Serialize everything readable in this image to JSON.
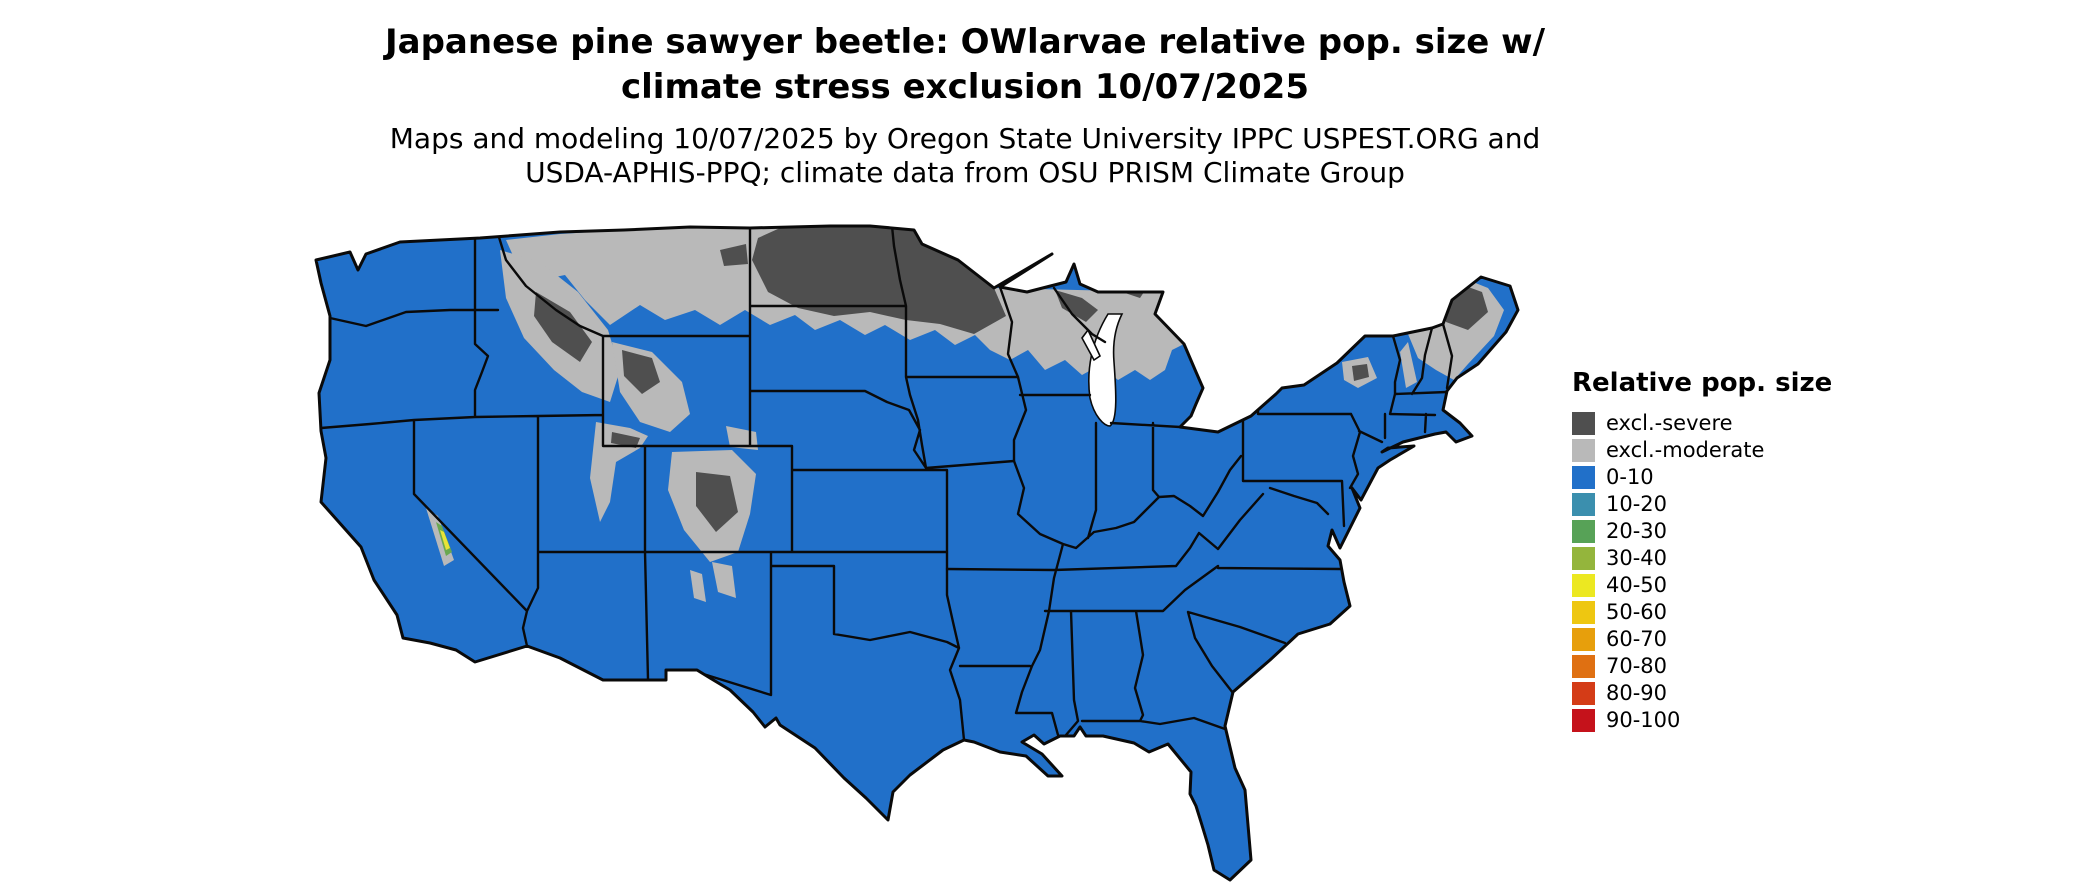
{
  "header": {
    "title_line1": "Japanese pine sawyer beetle: OWlarvae relative pop. size w/",
    "title_line2": "climate stress exclusion 10/07/2025",
    "subtitle_line1": "Maps and modeling 10/07/2025 by Oregon State University IPPC USPEST.ORG and",
    "subtitle_line2": "USDA-APHIS-PPQ; climate data from OSU PRISM Climate Group"
  },
  "legend": {
    "title": "Relative pop. size",
    "items": [
      {
        "label": "excl.-severe",
        "color": "#4f4f4f"
      },
      {
        "label": "excl.-moderate",
        "color": "#b9b9b9"
      },
      {
        "label": "0-10",
        "color": "#2170c9"
      },
      {
        "label": "10-20",
        "color": "#3b8fae"
      },
      {
        "label": "20-30",
        "color": "#57a257"
      },
      {
        "label": "30-40",
        "color": "#94b53c"
      },
      {
        "label": "40-50",
        "color": "#ece821"
      },
      {
        "label": "50-60",
        "color": "#eec711"
      },
      {
        "label": "60-70",
        "color": "#e79f0c"
      },
      {
        "label": "70-80",
        "color": "#df7012"
      },
      {
        "label": "80-90",
        "color": "#d43c17"
      },
      {
        "label": "90-100",
        "color": "#c5121b"
      }
    ]
  },
  "map": {
    "colors": {
      "land_base": "#2170c9",
      "excl_moderate": "#b9b9b9",
      "excl_severe": "#4f4f4f",
      "border": "#0a0a0a",
      "water": "#ffffff",
      "sierra_green": "#6aa84f",
      "sierra_yellow": "#e8e337"
    }
  }
}
